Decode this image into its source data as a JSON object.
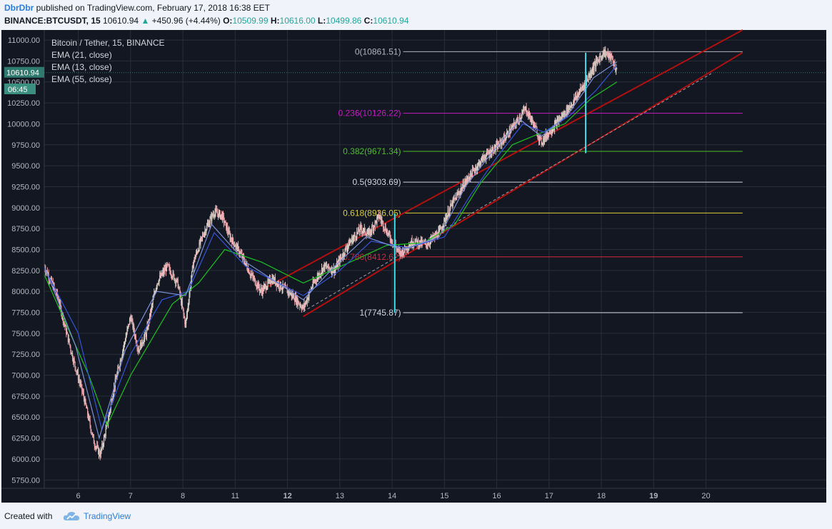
{
  "header": {
    "user": "DbrDbr",
    "published": " published on TradingView.com, February 17, 2018 16:38 EET",
    "symbol": "BINANCE:BTCUSDT, 15",
    "last": "10610.94",
    "change": "+450.96 (+4.44%)",
    "o_label": "O:",
    "o": "10509.99",
    "h_label": "H:",
    "h": "10616.00",
    "l_label": "L:",
    "l": "10499.86",
    "c_label": "C:",
    "c": "10610.94"
  },
  "legend": {
    "title": "Bitcoin / Tether, 15, BINANCE",
    "ema1": "EMA (21, close)",
    "ema2": "EMA (13, close)",
    "ema3": "EMA (55, close)"
  },
  "price_tag": "10610.94",
  "time_tag": "06:45",
  "footer": {
    "created": "Created with",
    "brand": "TradingView"
  },
  "colors": {
    "background": "#131722",
    "grid": "#2a2e39",
    "candle_up": "#d9d0c8",
    "candle_down": "#e8a0a8",
    "ema21": "#3355d8",
    "ema13": "#7a8fd6",
    "ema55": "#19c21f",
    "channel": "#b30f0f",
    "cyan": "#3de0e8",
    "price_tag": "#2f7a6e"
  },
  "chart_data": {
    "type": "candlestick",
    "yaxis": {
      "ticks": [
        5750,
        6000,
        6250,
        6500,
        6750,
        7000,
        7250,
        7500,
        7750,
        8000,
        8250,
        8500,
        8750,
        9000,
        9250,
        9500,
        9750,
        10000,
        10250,
        10500,
        10750,
        11000
      ],
      "ylim": [
        5650,
        11120
      ]
    },
    "xaxis": {
      "ticks": [
        "6",
        "7",
        "8",
        "11",
        "12",
        "13",
        "14",
        "15",
        "16",
        "17",
        "18",
        "19",
        "20"
      ],
      "xlim": [
        5.35,
        20.3
      ]
    },
    "price_path": [
      [
        5.35,
        8300
      ],
      [
        5.6,
        7950
      ],
      [
        5.9,
        7200
      ],
      [
        6.1,
        6750
      ],
      [
        6.3,
        6200
      ],
      [
        6.42,
        6050
      ],
      [
        6.55,
        6400
      ],
      [
        6.7,
        6900
      ],
      [
        6.85,
        7300
      ],
      [
        7.0,
        7700
      ],
      [
        7.15,
        7300
      ],
      [
        7.3,
        7500
      ],
      [
        7.5,
        8100
      ],
      [
        7.7,
        8300
      ],
      [
        7.9,
        8100
      ],
      [
        8.05,
        7600
      ],
      [
        8.2,
        8350
      ],
      [
        8.4,
        8700
      ],
      [
        8.6,
        8950
      ],
      [
        8.75,
        8900
      ],
      [
        8.9,
        8650
      ],
      [
        9.1,
        8450
      ],
      [
        9.3,
        8200
      ],
      [
        9.5,
        8000
      ],
      [
        9.7,
        8150
      ],
      [
        9.9,
        8050
      ],
      [
        10.1,
        7950
      ],
      [
        10.3,
        7800
      ],
      [
        10.5,
        8100
      ],
      [
        10.7,
        8300
      ],
      [
        10.9,
        8250
      ],
      [
        11.15,
        8550
      ],
      [
        11.4,
        8750
      ],
      [
        11.55,
        8680
      ],
      [
        11.75,
        8900
      ],
      [
        11.95,
        8650
      ],
      [
        12.15,
        8450
      ],
      [
        12.4,
        8600
      ],
      [
        12.65,
        8560
      ],
      [
        12.9,
        8700
      ],
      [
        13.15,
        9050
      ],
      [
        13.45,
        9350
      ],
      [
        13.75,
        9600
      ],
      [
        14.05,
        9750
      ],
      [
        14.3,
        9950
      ],
      [
        14.55,
        10180
      ],
      [
        14.7,
        10000
      ],
      [
        14.85,
        9780
      ],
      [
        15.0,
        9900
      ],
      [
        15.2,
        10050
      ],
      [
        15.45,
        10250
      ],
      [
        15.7,
        10500
      ],
      [
        15.85,
        10680
      ],
      [
        16.05,
        10860
      ],
      [
        16.2,
        10780
      ],
      [
        16.3,
        10611
      ]
    ],
    "ema21": [
      [
        5.35,
        8280
      ],
      [
        6.0,
        7500
      ],
      [
        6.45,
        6350
      ],
      [
        7.0,
        7250
      ],
      [
        7.6,
        7900
      ],
      [
        8.1,
        8000
      ],
      [
        8.6,
        8700
      ],
      [
        9.2,
        8300
      ],
      [
        10.3,
        7950
      ],
      [
        11.0,
        8250
      ],
      [
        11.6,
        8600
      ],
      [
        12.3,
        8520
      ],
      [
        13.0,
        8650
      ],
      [
        13.5,
        9150
      ],
      [
        14.0,
        9600
      ],
      [
        14.5,
        10000
      ],
      [
        14.9,
        9900
      ],
      [
        15.4,
        10100
      ],
      [
        15.9,
        10400
      ],
      [
        16.3,
        10700
      ]
    ],
    "ema13": [
      [
        5.35,
        8300
      ],
      [
        5.95,
        7350
      ],
      [
        6.4,
        6250
      ],
      [
        6.9,
        7300
      ],
      [
        7.5,
        8000
      ],
      [
        8.05,
        7950
      ],
      [
        8.55,
        8800
      ],
      [
        9.2,
        8350
      ],
      [
        10.3,
        7900
      ],
      [
        10.9,
        8300
      ],
      [
        11.5,
        8650
      ],
      [
        12.2,
        8500
      ],
      [
        12.9,
        8650
      ],
      [
        13.4,
        9250
      ],
      [
        13.9,
        9650
      ],
      [
        14.45,
        10050
      ],
      [
        14.85,
        9850
      ],
      [
        15.35,
        10100
      ],
      [
        15.85,
        10550
      ],
      [
        16.3,
        10740
      ]
    ],
    "ema55": [
      [
        5.35,
        8200
      ],
      [
        6.2,
        7000
      ],
      [
        6.55,
        6400
      ],
      [
        7.0,
        7000
      ],
      [
        7.8,
        7850
      ],
      [
        8.3,
        8100
      ],
      [
        8.8,
        8500
      ],
      [
        9.5,
        8350
      ],
      [
        10.3,
        8100
      ],
      [
        11.2,
        8350
      ],
      [
        11.9,
        8550
      ],
      [
        12.6,
        8580
      ],
      [
        13.2,
        8800
      ],
      [
        13.7,
        9300
      ],
      [
        14.3,
        9750
      ],
      [
        14.8,
        9880
      ],
      [
        15.3,
        10000
      ],
      [
        15.8,
        10300
      ],
      [
        16.3,
        10500
      ]
    ],
    "fib_levels": [
      {
        "label": "0(10861.51)",
        "value": 10861.51,
        "color": "#b2b5be"
      },
      {
        "label": "0.236(10126.22)",
        "value": 10126.22,
        "color": "#c51ac2"
      },
      {
        "label": "0.382(9671.34)",
        "value": 9671.34,
        "color": "#4cbf26"
      },
      {
        "label": "0.5(9303.69)",
        "value": 9303.69,
        "color": "#d1d4dc"
      },
      {
        "label": "0.618(8936.05)",
        "value": 8936.05,
        "color": "#d8cd3b"
      },
      {
        "label": "0.786(8412.62)",
        "value": 8412.62,
        "color": "#d02a38"
      },
      {
        "label": "1(7745.87)",
        "value": 7745.87,
        "color": "#d1d4dc"
      }
    ],
    "fib_x_range": [
      10.3,
      18.7
    ],
    "channel_upper": [
      [
        9.6,
        8050
      ],
      [
        18.7,
        11120
      ]
    ],
    "channel_lower": [
      [
        10.3,
        7700
      ],
      [
        18.7,
        10850
      ]
    ],
    "channel_mid": [
      [
        10.3,
        7760
      ],
      [
        18.1,
        10600
      ]
    ],
    "vlines": [
      [
        12.05,
        7745,
        8930
      ],
      [
        15.7,
        9650,
        10850
      ]
    ],
    "current_price": 10610.94
  }
}
